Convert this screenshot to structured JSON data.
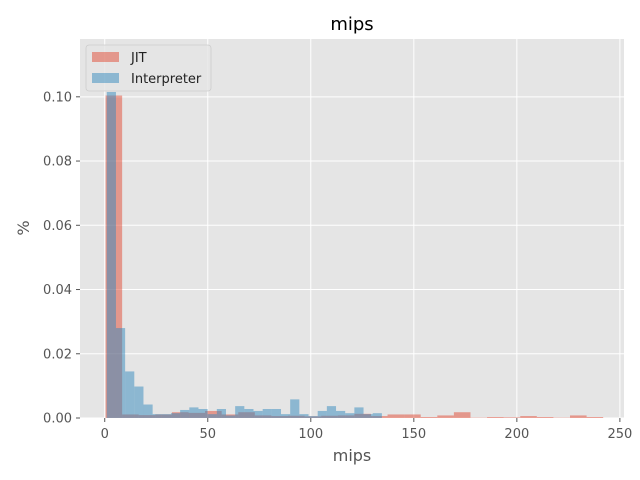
{
  "chart_data": {
    "type": "bar",
    "title": "mips",
    "xlabel": "mips",
    "ylabel": "%",
    "xlim": [
      -12,
      252
    ],
    "ylim": [
      0,
      0.118
    ],
    "xticks": [
      0,
      50,
      100,
      150,
      200,
      250
    ],
    "yticks": [
      0.0,
      0.02,
      0.04,
      0.06,
      0.08,
      0.1
    ],
    "ytick_labels": [
      "0.00",
      "0.02",
      "0.04",
      "0.06",
      "0.08",
      "0.10"
    ],
    "grid": true,
    "legend_position": "top-left",
    "style": {
      "background": "#e5e5e5",
      "grid_color": "#ffffff"
    },
    "series": [
      {
        "name": "JIT",
        "color": "#e24a33",
        "opacity": 0.5,
        "bin_width": 8.05,
        "bins": [
          {
            "x0": 0.4,
            "y": 0.1004
          },
          {
            "x0": 8.45,
            "y": 0.0011
          },
          {
            "x0": 16.5,
            "y": 0.0009
          },
          {
            "x0": 24.55,
            "y": 0.0011
          },
          {
            "x0": 32.6,
            "y": 0.0018
          },
          {
            "x0": 40.65,
            "y": 0.0016
          },
          {
            "x0": 48.7,
            "y": 0.0022
          },
          {
            "x0": 56.75,
            "y": 0.0011
          },
          {
            "x0": 64.8,
            "y": 0.0018
          },
          {
            "x0": 72.85,
            "y": 0.0008
          },
          {
            "x0": 80.9,
            "y": 0.0006
          },
          {
            "x0": 88.95,
            "y": 0.0007
          },
          {
            "x0": 97.0,
            "y": 0.0005
          },
          {
            "x0": 105.05,
            "y": 0.0007
          },
          {
            "x0": 113.1,
            "y": 0.0008
          },
          {
            "x0": 121.15,
            "y": 0.0013
          },
          {
            "x0": 129.2,
            "y": 0.0006
          },
          {
            "x0": 137.25,
            "y": 0.0011
          },
          {
            "x0": 145.3,
            "y": 0.0011
          },
          {
            "x0": 153.35,
            "y": 0.0003
          },
          {
            "x0": 161.4,
            "y": 0.0008
          },
          {
            "x0": 169.45,
            "y": 0.0018
          },
          {
            "x0": 177.5,
            "y": 0.0001
          },
          {
            "x0": 185.55,
            "y": 0.0003
          },
          {
            "x0": 193.6,
            "y": 0.0002
          },
          {
            "x0": 201.65,
            "y": 0.0006
          },
          {
            "x0": 209.7,
            "y": 0.0003
          },
          {
            "x0": 217.75,
            "y": 0.0001
          },
          {
            "x0": 225.8,
            "y": 0.0008
          },
          {
            "x0": 233.85,
            "y": 0.0003
          }
        ]
      },
      {
        "name": "Interpreter",
        "color": "#348abd",
        "opacity": 0.5,
        "bin_width": 4.45,
        "bins": [
          {
            "x0": 1.0,
            "y": 0.1015
          },
          {
            "x0": 5.45,
            "y": 0.028
          },
          {
            "x0": 9.9,
            "y": 0.0145
          },
          {
            "x0": 14.35,
            "y": 0.0098
          },
          {
            "x0": 18.8,
            "y": 0.0042
          },
          {
            "x0": 23.25,
            "y": 0.0012
          },
          {
            "x0": 27.7,
            "y": 0.0012
          },
          {
            "x0": 32.15,
            "y": 0.0015
          },
          {
            "x0": 36.6,
            "y": 0.0025
          },
          {
            "x0": 41.05,
            "y": 0.0033
          },
          {
            "x0": 45.5,
            "y": 0.0028
          },
          {
            "x0": 49.95,
            "y": 0.0012
          },
          {
            "x0": 54.4,
            "y": 0.0028
          },
          {
            "x0": 58.85,
            "y": 0.0008
          },
          {
            "x0": 63.3,
            "y": 0.0037
          },
          {
            "x0": 67.75,
            "y": 0.0028
          },
          {
            "x0": 72.2,
            "y": 0.0022
          },
          {
            "x0": 76.65,
            "y": 0.0028
          },
          {
            "x0": 81.1,
            "y": 0.0028
          },
          {
            "x0": 85.55,
            "y": 0.0012
          },
          {
            "x0": 90.0,
            "y": 0.0058
          },
          {
            "x0": 94.45,
            "y": 0.0012
          },
          {
            "x0": 98.9,
            "y": 0.0006
          },
          {
            "x0": 103.35,
            "y": 0.0022
          },
          {
            "x0": 107.8,
            "y": 0.0037
          },
          {
            "x0": 112.25,
            "y": 0.0022
          },
          {
            "x0": 116.7,
            "y": 0.0015
          },
          {
            "x0": 121.15,
            "y": 0.0033
          },
          {
            "x0": 125.6,
            "y": 0.0012
          },
          {
            "x0": 130.05,
            "y": 0.0015
          }
        ]
      }
    ]
  }
}
